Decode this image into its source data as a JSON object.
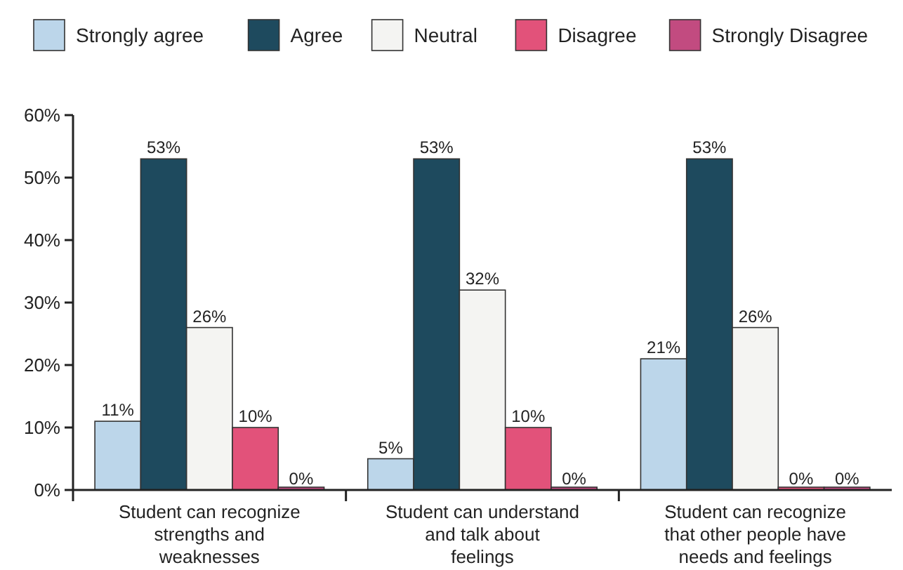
{
  "chart_data": {
    "type": "bar",
    "categories": [
      "Student can recognize strengths and weaknesses",
      "Student can understand and talk about feelings",
      "Student can recognize that other people have needs and feelings"
    ],
    "series": [
      {
        "name": "Strongly agree",
        "color": "#bcd6ea",
        "values": [
          11,
          5,
          21
        ],
        "value_labels": [
          "11%",
          "5%",
          "21%"
        ]
      },
      {
        "name": "Agree",
        "color": "#1e4a5e",
        "values": [
          53,
          53,
          53
        ],
        "value_labels": [
          "53%",
          "53%",
          "53%"
        ]
      },
      {
        "name": "Neutral",
        "color": "#f4f4f2",
        "values": [
          26,
          32,
          26
        ],
        "value_labels": [
          "26%",
          "32%",
          "26%"
        ]
      },
      {
        "name": "Disagree",
        "color": "#e2527a",
        "values": [
          10,
          10,
          0
        ],
        "value_labels": [
          "10%",
          "10%",
          "0%"
        ]
      },
      {
        "name": "Strongly Disagree",
        "color": "#c24b80",
        "values": [
          0,
          0,
          0
        ],
        "value_labels": [
          "0%",
          "0%",
          "0%"
        ]
      }
    ],
    "ylim": [
      0,
      60
    ],
    "yticks": [
      {
        "value": 0,
        "label": "0%"
      },
      {
        "value": 10,
        "label": "10%"
      },
      {
        "value": 20,
        "label": "20%"
      },
      {
        "value": 30,
        "label": "30%"
      },
      {
        "value": 40,
        "label": "40%"
      },
      {
        "value": 50,
        "label": "50%"
      },
      {
        "value": 60,
        "label": "60%"
      }
    ],
    "legend": "top",
    "grid": false
  }
}
